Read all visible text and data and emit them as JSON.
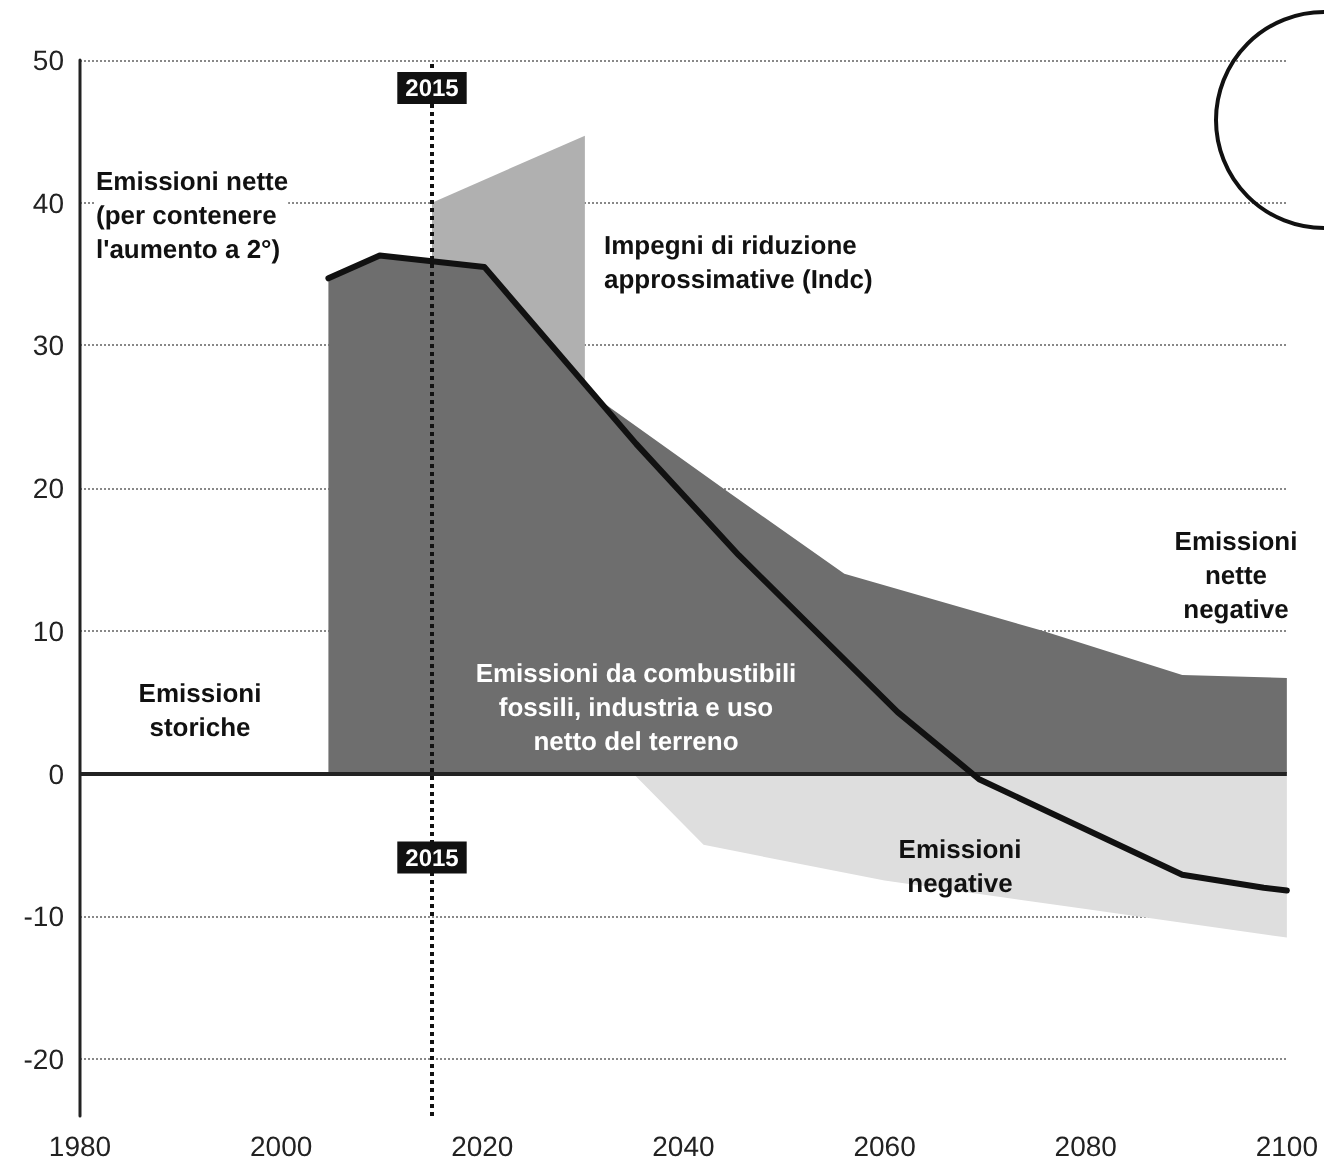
{
  "chart_data": {
    "type": "area",
    "x": [
      2004.7,
      2009.8,
      2020.2,
      2030.6,
      2044.7,
      2056,
      2075.7,
      2089.6,
      2100
    ],
    "series": [
      {
        "color": "#b0b0b0",
        "x": [
          2015,
          2030.2
        ],
        "values": [
          40,
          44.7
        ]
      },
      {
        "color": "#6e6e6e",
        "values": [
          34.7,
          36.3,
          35.5,
          26.7,
          19.6,
          14,
          10,
          6.9,
          6.7
        ]
      },
      {
        "color": "#dedede",
        "x": [
          2035,
          2042,
          2060,
          2080,
          2100
        ],
        "values": [
          0,
          -5,
          -7.5,
          -9.5,
          -11.5
        ]
      },
      {
        "type": "line",
        "color": "#111111",
        "x": [
          2004.7,
          2009.8,
          2020.2,
          2035.3,
          2045.5,
          2061.3,
          2069.4,
          2089.6,
          2097.7,
          2100
        ],
        "values": [
          34.7,
          36.3,
          35.5,
          23.1,
          15.3,
          4.3,
          -0.4,
          -7.1,
          -8,
          -8.2
        ]
      }
    ],
    "xlim": [
      1980,
      2100
    ],
    "xticks": [
      1980,
      2000,
      2020,
      2040,
      2060,
      2080,
      2100
    ],
    "ylim": [
      -24,
      50
    ],
    "yticks": [
      -20,
      -10,
      0,
      10,
      20,
      30,
      40,
      50
    ],
    "grid": "y",
    "marker": "none",
    "line_style": "solid",
    "ref_lines": [
      {
        "axis": "x",
        "value": 2015,
        "label": "2015",
        "color": "#111111",
        "line_style": "dotted"
      }
    ],
    "annotations": [
      "Emissioni nette\n(per contenere\nl'aumento a 2°)",
      "Impegni di riduzione\napprossimative (Indc)",
      "Emissioni\nstoriche",
      "Emissioni da combustibili\nfossili, industria e uso\nnetto del terreno",
      "Emissioni\nnegative",
      "Emissioni\nnette\nnegative"
    ]
  }
}
